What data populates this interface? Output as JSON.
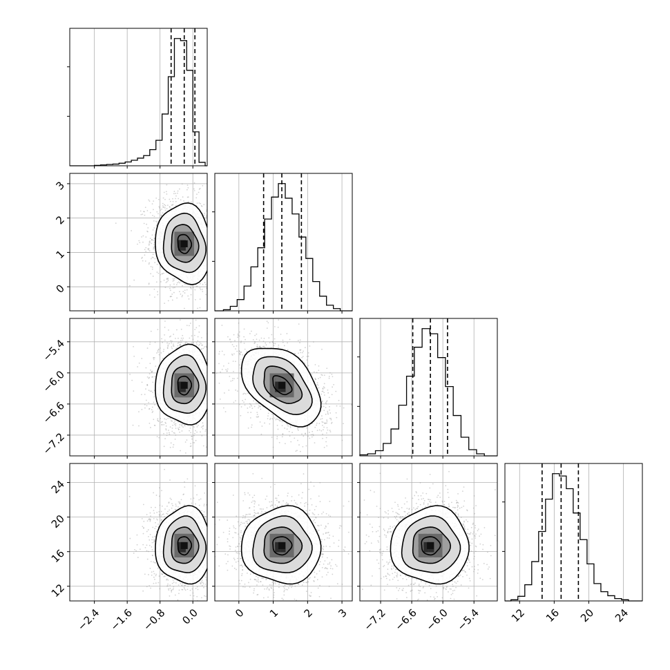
{
  "chart_data": {
    "type": "corner",
    "parameters": 4,
    "grid": true,
    "quantiles": [
      0.16,
      0.5,
      0.84
    ],
    "colors": {
      "line": "#000000",
      "grid": "#b0b0b0",
      "points": "#9a9a9a",
      "fill_dark": "#111111"
    },
    "params": [
      {
        "range": [
          -3.0,
          0.35
        ],
        "ticks": [
          -2.4,
          -1.6,
          -0.8,
          0.0
        ],
        "tick_labels": [
          "−2.4",
          "−1.6",
          "−0.8",
          "0.0"
        ],
        "hist_bins": [
          -2.4,
          -2.25,
          -2.1,
          -1.95,
          -1.8,
          -1.65,
          -1.5,
          -1.35,
          -1.2,
          -1.05,
          -0.9,
          -0.75,
          -0.6,
          -0.45,
          -0.3,
          -0.15,
          0.0,
          0.15,
          0.3
        ],
        "hist_counts": [
          1,
          2,
          3,
          4,
          6,
          9,
          13,
          18,
          24,
          38,
          60,
          122,
          210,
          300,
          295,
          225,
          80,
          8
        ],
        "quantile_values": [
          -0.53,
          -0.21,
          0.05
        ]
      },
      {
        "range": [
          -0.7,
          3.3
        ],
        "ticks": [
          0,
          1,
          2,
          3
        ],
        "tick_labels": [
          "0",
          "1",
          "2",
          "3"
        ],
        "hist_bins": [
          -0.45,
          -0.25,
          -0.05,
          0.15,
          0.35,
          0.55,
          0.75,
          0.95,
          1.15,
          1.35,
          1.55,
          1.75,
          1.95,
          2.15,
          2.35,
          2.55,
          2.75,
          2.95
        ],
        "hist_counts": [
          2,
          8,
          20,
          44,
          78,
          112,
          163,
          202,
          226,
          200,
          172,
          131,
          93,
          52,
          26,
          10,
          4
        ],
        "quantile_values": [
          0.72,
          1.25,
          1.82
        ]
      },
      {
        "range": [
          -7.6,
          -4.95
        ],
        "ticks": [
          -7.2,
          -6.6,
          -6.0,
          -5.4
        ],
        "tick_labels": [
          "−7.2",
          "−6.6",
          "−6.0",
          "−5.4"
        ],
        "hist_bins": [
          -7.6,
          -7.45,
          -7.3,
          -7.15,
          -7.0,
          -6.85,
          -6.7,
          -6.55,
          -6.4,
          -6.25,
          -6.1,
          -5.95,
          -5.8,
          -5.65,
          -5.5,
          -5.35,
          -5.2
        ],
        "hist_counts": [
          2,
          4,
          10,
          24,
          52,
          98,
          154,
          210,
          246,
          236,
          190,
          134,
          78,
          36,
          12,
          4
        ],
        "quantile_values": [
          -6.58,
          -6.24,
          -5.91
        ]
      },
      {
        "range": [
          10.3,
          26.2
        ],
        "ticks": [
          12,
          16,
          20,
          24
        ],
        "tick_labels": [
          "12",
          "16",
          "20",
          "24"
        ],
        "hist_bins": [
          11.0,
          11.8,
          12.6,
          13.4,
          14.2,
          15.0,
          15.8,
          16.6,
          17.4,
          18.2,
          19.0,
          19.8,
          20.6,
          21.4,
          22.2,
          23.0,
          23.8,
          24.6
        ],
        "hist_counts": [
          2,
          8,
          28,
          68,
          120,
          176,
          220,
          216,
          194,
          152,
          106,
          64,
          30,
          16,
          9,
          4,
          2
        ],
        "quantile_values": [
          14.6,
          16.8,
          18.8
        ]
      }
    ],
    "pairs": [
      {
        "row": 1,
        "col": 0,
        "center": [
          -0.21,
          1.25
        ],
        "sigma": [
          0.33,
          0.55
        ],
        "rho": -0.1
      },
      {
        "row": 2,
        "col": 0,
        "center": [
          -0.21,
          -6.24
        ],
        "sigma": [
          0.33,
          0.36
        ],
        "rho": 0.0
      },
      {
        "row": 2,
        "col": 1,
        "center": [
          1.25,
          -6.24
        ],
        "sigma": [
          0.55,
          0.36
        ],
        "rho": -0.45
      },
      {
        "row": 3,
        "col": 0,
        "center": [
          -0.21,
          16.7
        ],
        "sigma": [
          0.33,
          2.1
        ],
        "rho": 0.0
      },
      {
        "row": 3,
        "col": 1,
        "center": [
          1.25,
          16.7
        ],
        "sigma": [
          0.55,
          2.1
        ],
        "rho": 0.0
      },
      {
        "row": 3,
        "col": 2,
        "center": [
          -6.24,
          16.7
        ],
        "sigma": [
          0.36,
          2.1
        ],
        "rho": 0.0
      }
    ]
  }
}
